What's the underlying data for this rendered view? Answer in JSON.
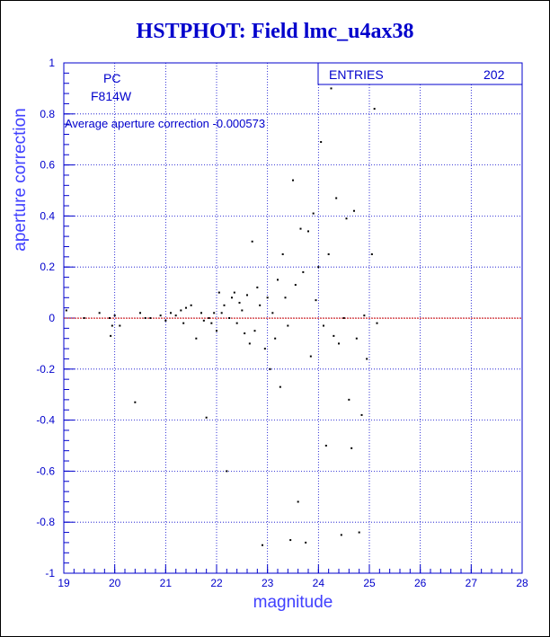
{
  "title": "HSTPHOT: Field lmc_u4ax38",
  "info": {
    "camera": "PC",
    "filter": "F814W",
    "average_text": "Average aperture correction -0.000573"
  },
  "stats": {
    "entries_label": "ENTRIES",
    "entries_value": "202"
  },
  "chart_data": {
    "type": "scatter",
    "title": "HSTPHOT: Field lmc_u4ax38",
    "xlabel": "magnitude",
    "ylabel": "aperture correction",
    "xlim": [
      19,
      28
    ],
    "ylim": [
      -1,
      1
    ],
    "xticks": [
      "19",
      "20",
      "21",
      "22",
      "23",
      "24",
      "25",
      "26",
      "27",
      "28"
    ],
    "yticks": [
      "-1",
      "-0.8",
      "-0.6",
      "-0.4",
      "-0.2",
      "0",
      "0.2",
      "0.4",
      "0.6",
      "0.8",
      "1"
    ],
    "grid": true,
    "reference_line_y": -0.000573,
    "colors": {
      "axes": "#0000cc",
      "grid": "#0000cc",
      "points": "#000000",
      "reference": "#cc0000",
      "title": "#0000cc"
    },
    "points": [
      [
        19.05,
        0.03
      ],
      [
        19.4,
        0.0
      ],
      [
        19.7,
        0.02
      ],
      [
        19.9,
        0.0
      ],
      [
        19.92,
        -0.07
      ],
      [
        19.95,
        -0.03
      ],
      [
        20.0,
        0.01
      ],
      [
        20.1,
        -0.03
      ],
      [
        20.4,
        -0.33
      ],
      [
        20.5,
        0.02
      ],
      [
        20.6,
        0.0
      ],
      [
        20.7,
        0.0
      ],
      [
        20.9,
        0.01
      ],
      [
        21.0,
        -0.01
      ],
      [
        21.1,
        0.02
      ],
      [
        21.2,
        0.01
      ],
      [
        21.3,
        0.03
      ],
      [
        21.35,
        -0.02
      ],
      [
        21.4,
        0.04
      ],
      [
        21.5,
        0.05
      ],
      [
        21.6,
        -0.08
      ],
      [
        21.7,
        0.02
      ],
      [
        21.75,
        -0.01
      ],
      [
        21.8,
        -0.39
      ],
      [
        21.85,
        0.0
      ],
      [
        21.9,
        -0.02
      ],
      [
        21.95,
        0.02
      ],
      [
        22.0,
        -0.05
      ],
      [
        22.05,
        0.1
      ],
      [
        22.1,
        0.02
      ],
      [
        22.15,
        0.05
      ],
      [
        22.2,
        -0.6
      ],
      [
        22.25,
        0.0
      ],
      [
        22.3,
        0.08
      ],
      [
        22.35,
        0.1
      ],
      [
        22.4,
        -0.02
      ],
      [
        22.45,
        0.06
      ],
      [
        22.5,
        0.03
      ],
      [
        22.55,
        -0.06
      ],
      [
        22.6,
        0.09
      ],
      [
        22.65,
        -0.1
      ],
      [
        22.7,
        0.3
      ],
      [
        22.75,
        -0.05
      ],
      [
        22.8,
        0.12
      ],
      [
        22.85,
        0.05
      ],
      [
        22.9,
        -0.89
      ],
      [
        22.95,
        -0.12
      ],
      [
        23.0,
        0.08
      ],
      [
        23.05,
        -0.2
      ],
      [
        23.1,
        0.02
      ],
      [
        23.15,
        -0.08
      ],
      [
        23.2,
        0.15
      ],
      [
        23.25,
        -0.27
      ],
      [
        23.3,
        0.25
      ],
      [
        23.35,
        0.08
      ],
      [
        23.4,
        -0.03
      ],
      [
        23.45,
        -0.87
      ],
      [
        23.5,
        0.54
      ],
      [
        23.55,
        0.13
      ],
      [
        23.6,
        -0.72
      ],
      [
        23.65,
        0.35
      ],
      [
        23.7,
        0.18
      ],
      [
        23.75,
        -0.88
      ],
      [
        23.8,
        0.34
      ],
      [
        23.85,
        -0.15
      ],
      [
        23.9,
        0.41
      ],
      [
        23.95,
        0.07
      ],
      [
        24.0,
        0.2
      ],
      [
        24.05,
        0.69
      ],
      [
        24.1,
        -0.03
      ],
      [
        24.15,
        -0.5
      ],
      [
        24.2,
        0.25
      ],
      [
        24.25,
        0.9
      ],
      [
        24.3,
        -0.07
      ],
      [
        24.35,
        0.47
      ],
      [
        24.4,
        -0.1
      ],
      [
        24.45,
        -0.85
      ],
      [
        24.5,
        0.0
      ],
      [
        24.55,
        0.39
      ],
      [
        24.6,
        -0.32
      ],
      [
        24.65,
        -0.51
      ],
      [
        24.7,
        0.42
      ],
      [
        24.75,
        -0.08
      ],
      [
        24.8,
        -0.84
      ],
      [
        24.85,
        -0.38
      ],
      [
        24.9,
        0.01
      ],
      [
        24.95,
        -0.16
      ],
      [
        25.05,
        0.25
      ],
      [
        25.1,
        0.82
      ],
      [
        25.15,
        -0.02
      ]
    ]
  }
}
